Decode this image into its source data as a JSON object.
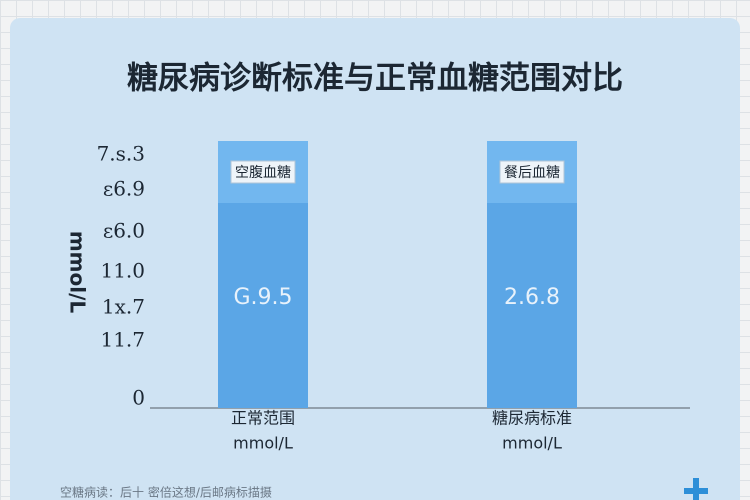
{
  "title": "糖尿病诊断标准与正常血糖范围对比",
  "y_axis_label": "mmol/L",
  "tick_labels": [
    "7.s.3",
    "ε6.9",
    "ε6.0",
    "11.0",
    "1x.7",
    "11.7",
    "0"
  ],
  "bars": [
    {
      "top_label": "空腹血糖",
      "value_label": "G.9.5",
      "category": [
        "正常范围",
        "mmol/L"
      ]
    },
    {
      "top_label": "餐后血糖",
      "value_label": "2.6.8",
      "category": [
        "糖尿病标准",
        "mmol/L"
      ]
    }
  ],
  "footer": "空糖病读：后十 密倍这想/后邮病标描摄"
}
